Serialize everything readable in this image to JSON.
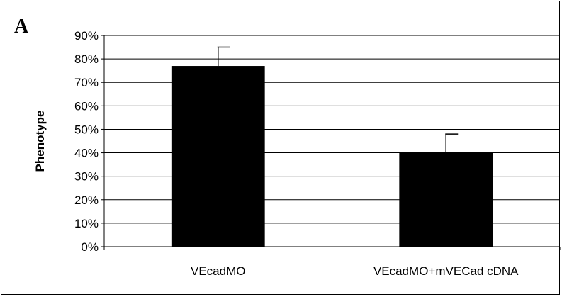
{
  "panel_label": "A",
  "colors": {
    "bar": "#000000",
    "grid": "#000000",
    "axis": "#000000",
    "background": "#ffffff"
  },
  "chart_data": {
    "type": "bar",
    "title": "",
    "xlabel": "",
    "ylabel": "Phenotype",
    "categories": [
      "VEcadMO",
      "VEcadMO+mVECad cDNA"
    ],
    "values": [
      0.77,
      0.4
    ],
    "error_plus": [
      0.08,
      0.08
    ],
    "ylim": [
      0,
      0.9
    ],
    "yticks": [
      0,
      0.1,
      0.2,
      0.3,
      0.4,
      0.5,
      0.6,
      0.7,
      0.8,
      0.9
    ],
    "ytick_labels": [
      "0%",
      "10%",
      "20%",
      "30%",
      "40%",
      "50%",
      "60%",
      "70%",
      "80%",
      "90%"
    ],
    "grid": true,
    "legend": "none"
  }
}
